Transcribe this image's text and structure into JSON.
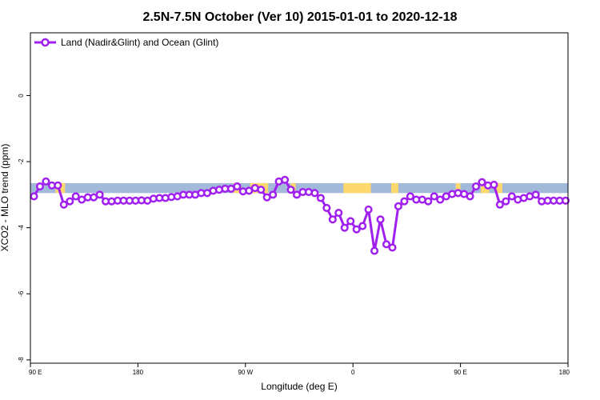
{
  "chart_data": {
    "type": "line",
    "title": "2.5N-7.5N October (Ver 10)   2015-01-01 to 2020-12-18",
    "xlabel": "Longitude (deg E)",
    "ylabel": "XCO2 - MLO trend (ppm)",
    "xlim": [
      90,
      540
    ],
    "ylim": [
      -8.1,
      1.9
    ],
    "xticks": [
      {
        "value": 90,
        "label": "90 E"
      },
      {
        "value": 180,
        "label": "180"
      },
      {
        "value": 270,
        "label": "90 W"
      },
      {
        "value": 360,
        "label": "0"
      },
      {
        "value": 450,
        "label": "90 E"
      },
      {
        "value": 540,
        "label": "180"
      }
    ],
    "yticks": [
      {
        "value": 0,
        "label": "0"
      },
      {
        "value": -2,
        "label": "-2"
      },
      {
        "value": -4,
        "label": "-4"
      },
      {
        "value": -6,
        "label": "-6"
      },
      {
        "value": -8,
        "label": "-8"
      }
    ],
    "grid": false,
    "legend": {
      "position": "top-left"
    },
    "colors": {
      "line": "#a020f0",
      "ocean_band": "#a3b9d9",
      "land_band": "#fdd86f"
    },
    "surface_band": {
      "top": -2.65,
      "bottom": -2.95
    },
    "land_segments": [
      [
        111,
        119
      ],
      [
        260,
        265
      ],
      [
        274,
        289
      ],
      [
        308,
        312
      ],
      [
        352,
        375
      ],
      [
        392,
        398
      ],
      [
        446,
        450
      ],
      [
        467,
        474
      ],
      [
        480,
        485
      ]
    ],
    "series": [
      {
        "name": "Land (Nadir&Glint) and Ocean (Glint)",
        "x": [
          93,
          98,
          103,
          108,
          113,
          118,
          123,
          128,
          133,
          138,
          143,
          148,
          153,
          158,
          163,
          168,
          173,
          178,
          183,
          188,
          193,
          198,
          203,
          208,
          213,
          218,
          223,
          228,
          233,
          238,
          243,
          248,
          253,
          258,
          263,
          268,
          273,
          278,
          283,
          288,
          293,
          298,
          303,
          308,
          313,
          318,
          323,
          328,
          333,
          338,
          343,
          348,
          353,
          358,
          363,
          368,
          373,
          378,
          383,
          388,
          393,
          398,
          403,
          408,
          413,
          418,
          423,
          428,
          433,
          438,
          443,
          448,
          453,
          458,
          463,
          468,
          473,
          478,
          483,
          488,
          493,
          498,
          503,
          508,
          513,
          518,
          523,
          528,
          533,
          538
        ],
        "y": [
          -3.05,
          -2.75,
          -2.6,
          -2.72,
          -2.72,
          -3.3,
          -3.2,
          -3.05,
          -3.15,
          -3.08,
          -3.08,
          -3.0,
          -3.2,
          -3.2,
          -3.18,
          -3.18,
          -3.18,
          -3.18,
          -3.17,
          -3.18,
          -3.12,
          -3.1,
          -3.1,
          -3.07,
          -3.05,
          -3.0,
          -3.0,
          -3.0,
          -2.95,
          -2.95,
          -2.88,
          -2.85,
          -2.82,
          -2.82,
          -2.75,
          -2.9,
          -2.88,
          -2.8,
          -2.85,
          -3.08,
          -3.0,
          -2.6,
          -2.55,
          -2.85,
          -3.0,
          -2.92,
          -2.92,
          -2.95,
          -3.1,
          -3.4,
          -3.75,
          -3.55,
          -4.0,
          -3.8,
          -4.05,
          -3.95,
          -3.45,
          -4.7,
          -3.75,
          -4.5,
          -4.6,
          -3.35,
          -3.2,
          -3.05,
          -3.15,
          -3.15,
          -3.2,
          -3.05,
          -3.15,
          -3.05,
          -2.98,
          -2.95,
          -2.98,
          -3.05,
          -2.75,
          -2.62,
          -2.72,
          -2.7,
          -3.3,
          -3.2,
          -3.05,
          -3.15,
          -3.1,
          -3.05,
          -3.0,
          -3.2,
          -3.18,
          -3.18,
          -3.18,
          -3.18
        ]
      }
    ]
  }
}
